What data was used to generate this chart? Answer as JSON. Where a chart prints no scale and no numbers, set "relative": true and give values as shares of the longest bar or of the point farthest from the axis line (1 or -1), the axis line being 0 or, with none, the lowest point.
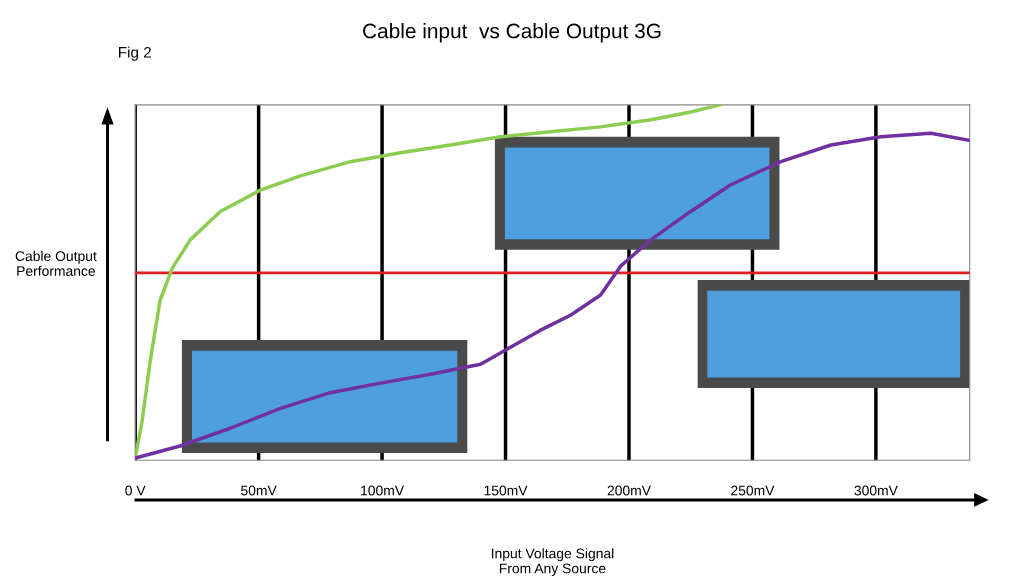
{
  "chart_data": {
    "type": "line",
    "title": "Cable input  vs Cable Output 3G",
    "xlabel": "Input Voltage Signal\nFrom Any Source",
    "ylabel": "Cable Output\nPerformance",
    "annotations": [
      "Fig 2"
    ],
    "relative": true,
    "tick_labels": "x",
    "grid": "x",
    "legend": false,
    "marker": "none",
    "line_style": "solid",
    "xlim": [
      0,
      338
    ],
    "xticks": [
      {
        "value": 0,
        "label": "0 V"
      },
      {
        "value": 50,
        "label": "50mV"
      },
      {
        "value": 100,
        "label": "100mV"
      },
      {
        "value": 150,
        "label": "150mV"
      },
      {
        "value": 200,
        "label": "200mV"
      },
      {
        "value": 250,
        "label": "250mV"
      },
      {
        "value": 300,
        "label": "300mV"
      }
    ],
    "series": [
      {
        "color": "#8ccc50",
        "x": [
          0,
          2.8,
          6.1,
          10.1,
          15,
          22.3,
          34.5,
          50.7,
          66.9,
          87.2,
          107.4,
          127.7,
          148,
          168.2,
          188.5,
          209,
          225,
          237
        ],
        "values": [
          0.006,
          0.11,
          0.28,
          0.45,
          0.54,
          0.62,
          0.7,
          0.76,
          0.8,
          0.84,
          0.865,
          0.887,
          0.91,
          0.924,
          0.938,
          0.958,
          0.98,
          1.0
        ]
      },
      {
        "color": "#7030a0",
        "x": [
          0,
          18.2,
          38.5,
          58.8,
          79,
          99.3,
          119.6,
          139.9,
          152,
          164.2,
          176.3,
          188.5,
          196.6,
          208.8,
          225,
          241.2,
          261.5,
          281.8,
          302,
          322.3,
          338
        ],
        "values": [
          0.006,
          0.04,
          0.09,
          0.146,
          0.19,
          0.217,
          0.242,
          0.27,
          0.318,
          0.366,
          0.408,
          0.465,
          0.546,
          0.62,
          0.7,
          0.775,
          0.84,
          0.887,
          0.91,
          0.92,
          0.9
        ]
      }
    ],
    "ref_lines": [
      {
        "axis": "y",
        "value": 0.527,
        "color": "#e0201c"
      }
    ]
  }
}
